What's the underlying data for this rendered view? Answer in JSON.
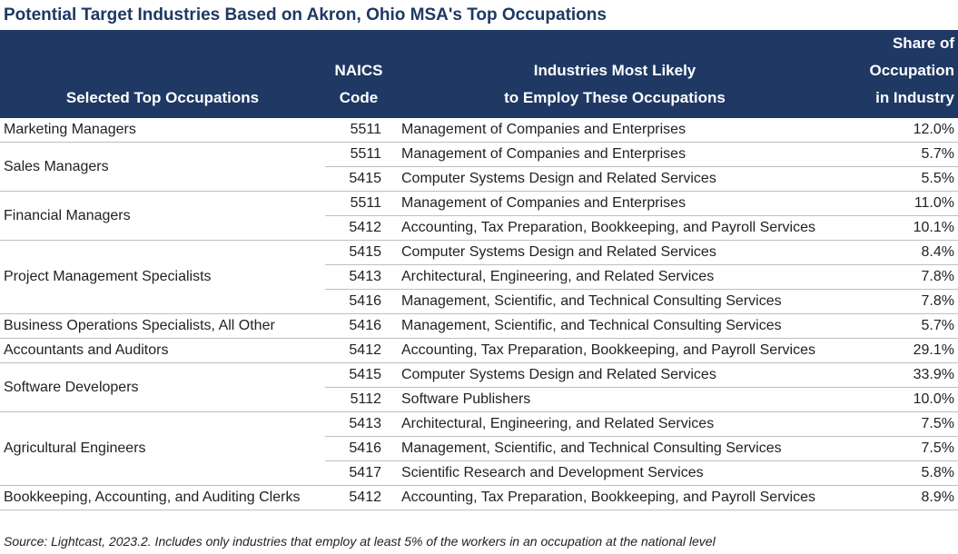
{
  "title": "Potential Target Industries Based on Akron, Ohio MSA's Top Occupations",
  "table": {
    "headers": [
      [
        "Selected Top Occupations"
      ],
      [
        "NAICS",
        "Code"
      ],
      [
        "Industries Most Likely",
        "to Employ These Occupations"
      ],
      [
        "Share of",
        "Occupation",
        "in Industry"
      ]
    ],
    "groups": [
      {
        "occupation": "Marketing Managers",
        "rows": [
          [
            "5511",
            "Management of Companies and Enterprises",
            "12.0%"
          ]
        ]
      },
      {
        "occupation": "Sales Managers",
        "rows": [
          [
            "5511",
            "Management of Companies and Enterprises",
            "5.7%"
          ],
          [
            "5415",
            "Computer Systems Design and Related Services",
            "5.5%"
          ]
        ]
      },
      {
        "occupation": "Financial Managers",
        "rows": [
          [
            "5511",
            "Management of Companies and Enterprises",
            "11.0%"
          ],
          [
            "5412",
            "Accounting, Tax Preparation, Bookkeeping, and Payroll Services",
            "10.1%"
          ]
        ]
      },
      {
        "occupation": "Project Management Specialists",
        "rows": [
          [
            "5415",
            "Computer Systems Design and Related Services",
            "8.4%"
          ],
          [
            "5413",
            "Architectural, Engineering, and Related Services",
            "7.8%"
          ],
          [
            "5416",
            "Management, Scientific, and Technical Consulting Services",
            "7.8%"
          ]
        ]
      },
      {
        "occupation": "Business Operations Specialists, All Other",
        "rows": [
          [
            "5416",
            "Management, Scientific, and Technical Consulting Services",
            "5.7%"
          ]
        ]
      },
      {
        "occupation": "Accountants and Auditors",
        "rows": [
          [
            "5412",
            "Accounting, Tax Preparation, Bookkeeping, and Payroll Services",
            "29.1%"
          ]
        ]
      },
      {
        "occupation": "Software Developers",
        "rows": [
          [
            "5415",
            "Computer Systems Design and Related Services",
            "33.9%"
          ],
          [
            "5112",
            "Software Publishers",
            "10.0%"
          ]
        ]
      },
      {
        "occupation": "Agricultural Engineers",
        "rows": [
          [
            "5413",
            "Architectural, Engineering, and Related Services",
            "7.5%"
          ],
          [
            "5416",
            "Management, Scientific, and Technical Consulting Services",
            "7.5%"
          ],
          [
            "5417",
            "Scientific Research and Development Services",
            "5.8%"
          ]
        ]
      },
      {
        "occupation": "Bookkeeping, Accounting, and Auditing Clerks",
        "rows": [
          [
            "5412",
            "Accounting, Tax Preparation, Bookkeeping, and Payroll Services",
            "8.9%"
          ]
        ]
      }
    ]
  },
  "source": "Source: Lightcast, 2023.2. Includes only industries that employ at least 5% of the workers in an occupation at the national level"
}
